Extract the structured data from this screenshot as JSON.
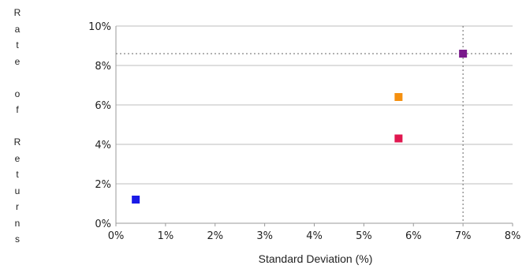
{
  "chart_data": {
    "type": "scatter",
    "title": "",
    "xlabel": "Standard Deviation (%)",
    "ylabel": "Rate of Returns",
    "xlim": [
      0,
      8
    ],
    "ylim": [
      0,
      10
    ],
    "xticks": [
      "0%",
      "1%",
      "2%",
      "3%",
      "4%",
      "5%",
      "6%",
      "7%",
      "8%"
    ],
    "yticks": [
      "0%",
      "2%",
      "4%",
      "6%",
      "8%",
      "10%"
    ],
    "grid": "horizontal",
    "points": [
      {
        "x": 0.4,
        "y": 1.2,
        "color": "#1a1ae6"
      },
      {
        "x": 5.7,
        "y": 4.3,
        "color": "#e0174f"
      },
      {
        "x": 5.7,
        "y": 6.4,
        "color": "#f5900f"
      },
      {
        "x": 7.0,
        "y": 8.6,
        "color": "#7a1a8c"
      }
    ],
    "reference_lines": {
      "x": 7.0,
      "y": 8.6
    }
  }
}
